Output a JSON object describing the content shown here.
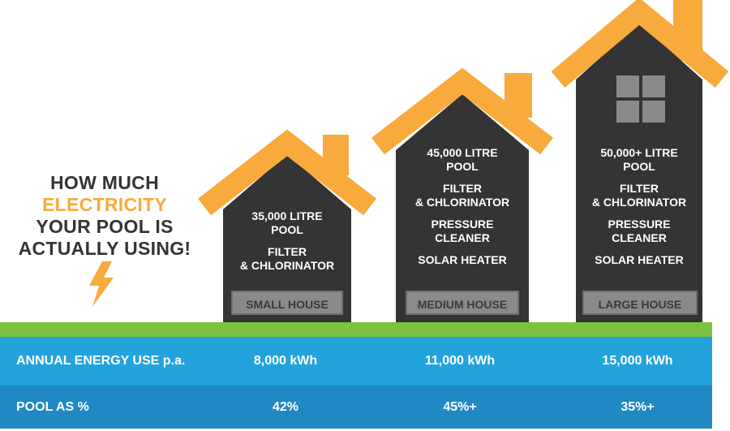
{
  "headline": {
    "line1": "HOW MUCH",
    "line2": "ELECTRICITY",
    "line3": "YOUR POOL IS",
    "line4": "ACTUALLY USING!"
  },
  "colors": {
    "roof": "#f8aa3c",
    "house": "#343434",
    "grass": "#7dc142",
    "row_energy": "#23a3dc",
    "row_percent": "#2088c2",
    "accent_text": "#f8aa3c"
  },
  "icons": {
    "bolt": "lightning-bolt-icon",
    "window": "window-icon"
  },
  "houses": [
    {
      "label": "SMALL HOUSE",
      "items": [
        [
          "35,000 LITRE",
          "POOL"
        ],
        [
          "FILTER",
          "& CHLORINATOR"
        ]
      ]
    },
    {
      "label": "MEDIUM HOUSE",
      "items": [
        [
          "45,000 LITRE",
          "POOL"
        ],
        [
          "FILTER",
          "& CHLORINATOR"
        ],
        [
          "PRESSURE",
          "CLEANER"
        ],
        [
          "SOLAR HEATER"
        ]
      ]
    },
    {
      "label": "LARGE HOUSE",
      "items": [
        [
          "50,000+ LITRE",
          "POOL"
        ],
        [
          "FILTER",
          "& CHLORINATOR"
        ],
        [
          "PRESSURE",
          "CLEANER"
        ],
        [
          "SOLAR HEATER"
        ]
      ]
    }
  ],
  "table": {
    "energy_label": "ANNUAL ENERGY USE p.a.",
    "energy_values": [
      "8,000 kWh",
      "11,000 kWh",
      "15,000 kWh"
    ],
    "percent_label": "POOL AS %",
    "percent_values": [
      "42%",
      "45%+",
      "35%+"
    ]
  }
}
